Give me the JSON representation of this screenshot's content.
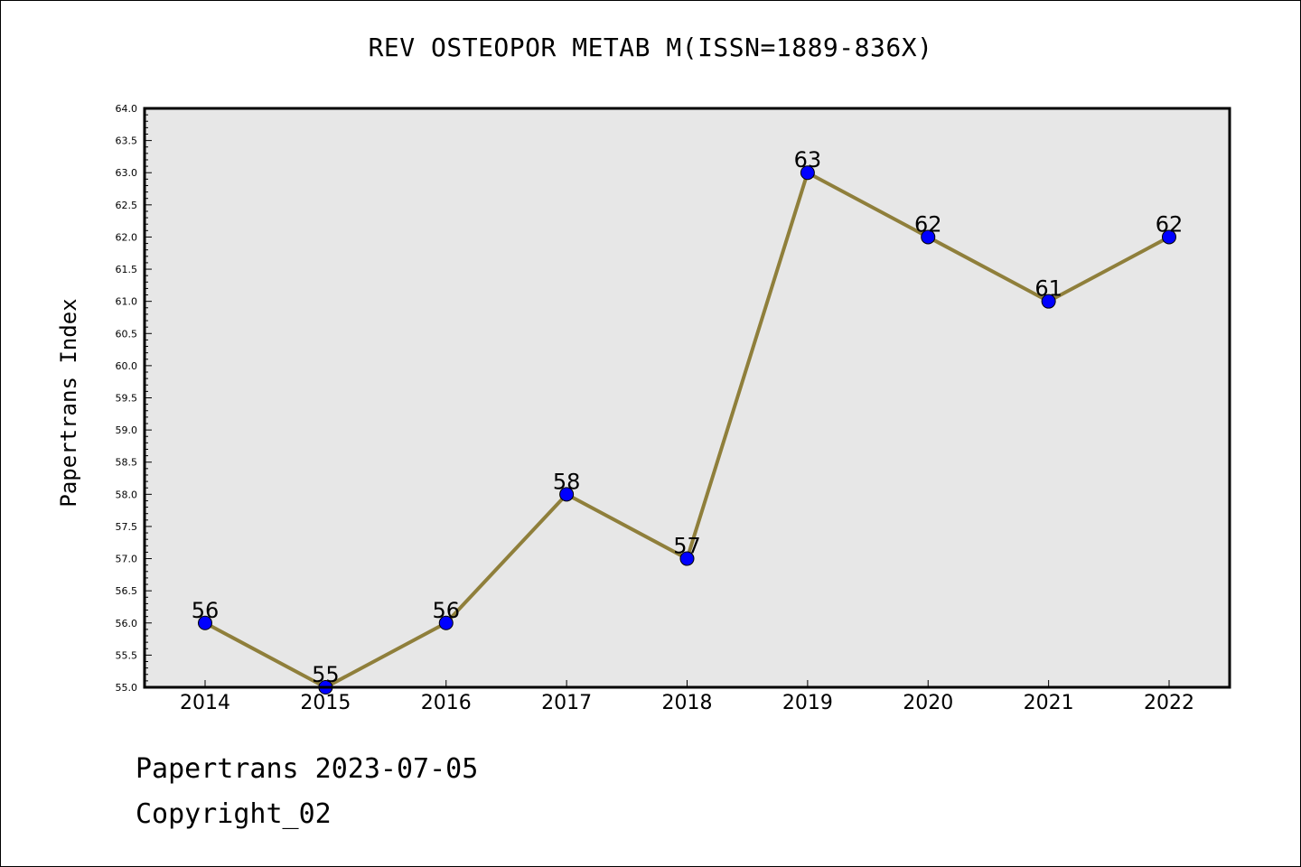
{
  "title": "REV OSTEOPOR METAB M(ISSN=1889-836X)",
  "footer": {
    "date_line": "Papertrans 2023-07-05",
    "copyright_line": "Copyright_02"
  },
  "colors": {
    "plot_background": "#e7e7e7",
    "line": "#8f7f3b",
    "marker": "#0000ff"
  },
  "chart_data": {
    "type": "line",
    "title": "REV OSTEOPOR METAB M(ISSN=1889-836X)",
    "xlabel": "",
    "ylabel": "Papertrans Index",
    "categories": [
      "2014",
      "2015",
      "2016",
      "2017",
      "2018",
      "2019",
      "2020",
      "2021",
      "2022"
    ],
    "series": [
      {
        "values": [
          56,
          55,
          56,
          58,
          57,
          63,
          62,
          61,
          62
        ]
      }
    ],
    "data_labels": [
      "56",
      "55",
      "56",
      "58",
      "57",
      "63",
      "62",
      "61",
      "62"
    ],
    "ylim": [
      55.0,
      64.0
    ],
    "yticks": [
      "55.0",
      "55.5",
      "56.0",
      "56.5",
      "57.0",
      "57.5",
      "58.0",
      "58.5",
      "59.0",
      "59.5",
      "60.0",
      "60.5",
      "61.0",
      "61.5",
      "62.0",
      "62.5",
      "63.0",
      "63.5",
      "64.0"
    ],
    "grid": false,
    "legend": "none"
  }
}
